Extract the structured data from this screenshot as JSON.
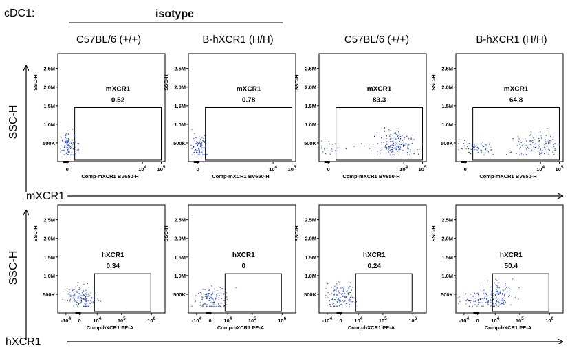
{
  "figure": {
    "population_label": "cDC1:",
    "isotype_label": "isotype",
    "column_headers": [
      "C57BL/6 (+/+)",
      "B-hXCR1 (H/H)",
      "C57BL/6 (+/+)",
      "B-hXCR1 (H/H)"
    ],
    "y_arrow_label": "SSC-H",
    "row_arrow_labels": [
      "mXCR1",
      "hXCR1"
    ]
  },
  "chart_data": [
    {
      "type": "scatter",
      "row": 0,
      "col": 0,
      "ylabel": "SSC-H",
      "xlabel": "Comp-mXCR1 BV650-H",
      "y_ticks": [
        "500K",
        "1.0M",
        "1.5M",
        "2.0M",
        "2.5M"
      ],
      "x_ticks": [
        "0",
        "10^4",
        "10^5"
      ],
      "gate_name": "mXCR1",
      "gate_value": "0.52",
      "points": [
        {
          "x": 0.1,
          "y": 420000,
          "n": 110,
          "sx": 0.22,
          "sy": 180000
        }
      ]
    },
    {
      "type": "scatter",
      "row": 0,
      "col": 1,
      "ylabel": "SSC-H",
      "xlabel": "Comp-mXCR1 BV650-H",
      "y_ticks": [
        "500K",
        "1.0M",
        "1.5M",
        "2.0M",
        "2.5M"
      ],
      "x_ticks": [
        "0",
        "10^4",
        "10^5"
      ],
      "gate_name": "mXCR1",
      "gate_value": "0.78",
      "points": [
        {
          "x": 0.1,
          "y": 420000,
          "n": 100,
          "sx": 0.22,
          "sy": 170000
        }
      ]
    },
    {
      "type": "scatter",
      "row": 0,
      "col": 2,
      "ylabel": "SSC-H",
      "xlabel": "Comp-mXCR1 BV650-H",
      "y_ticks": [
        "500K",
        "1.0M",
        "1.5M",
        "2.0M",
        "2.5M"
      ],
      "x_ticks": [
        "0",
        "10^4",
        "10^5"
      ],
      "gate_name": "mXCR1",
      "gate_value": "83.3",
      "points": [
        {
          "x": 3.6,
          "y": 450000,
          "n": 170,
          "sx": 0.55,
          "sy": 180000
        },
        {
          "x": 0.1,
          "y": 380000,
          "n": 20,
          "sx": 0.5,
          "sy": 120000
        }
      ]
    },
    {
      "type": "scatter",
      "row": 0,
      "col": 3,
      "ylabel": "SSC-H",
      "xlabel": "Comp-mXCR1 BV650-H",
      "y_ticks": [
        "500K",
        "1.0M",
        "1.5M",
        "2.0M",
        "2.5M"
      ],
      "x_ticks": [
        "0",
        "10^4",
        "10^5"
      ],
      "gate_name": "mXCR1",
      "gate_value": "64.8",
      "points": [
        {
          "x": 3.8,
          "y": 450000,
          "n": 120,
          "sx": 0.65,
          "sy": 170000
        },
        {
          "x": 0.4,
          "y": 370000,
          "n": 70,
          "sx": 0.5,
          "sy": 100000
        }
      ]
    },
    {
      "type": "scatter",
      "row": 1,
      "col": 0,
      "ylabel": "SSC-H",
      "xlabel": "Comp-hXCR1 PE-A",
      "y_ticks": [
        "500K",
        "1.0M",
        "1.5M",
        "2.0M",
        "2.5M"
      ],
      "x_ticks": [
        "-10^4",
        "0",
        "10^4",
        "10^5",
        "10^6"
      ],
      "gate_name": "hXCR1",
      "gate_value": "0.34",
      "points": [
        {
          "x": 0.1,
          "y": 400000,
          "n": 140,
          "sx": 0.55,
          "sy": 180000
        }
      ]
    },
    {
      "type": "scatter",
      "row": 1,
      "col": 1,
      "ylabel": "SSC-H",
      "xlabel": "Comp-hXCR1 PE-A",
      "y_ticks": [
        "500K",
        "1.0M",
        "1.5M",
        "2.0M",
        "2.5M"
      ],
      "x_ticks": [
        "-10^4",
        "0",
        "10^4",
        "10^5",
        "10^6"
      ],
      "gate_name": "hXCR1",
      "gate_value": "0",
      "points": [
        {
          "x": 0.1,
          "y": 380000,
          "n": 120,
          "sx": 0.55,
          "sy": 170000
        }
      ]
    },
    {
      "type": "scatter",
      "row": 1,
      "col": 2,
      "ylabel": "SSC-H",
      "xlabel": "Comp-hXCR1 PE-A",
      "y_ticks": [
        "500K",
        "1.0M",
        "1.5M",
        "2.0M",
        "2.5M"
      ],
      "x_ticks": [
        "-10^4",
        "0",
        "10^4",
        "10^5",
        "10^6"
      ],
      "gate_name": "hXCR1",
      "gate_value": "0.24",
      "points": [
        {
          "x": 0.1,
          "y": 420000,
          "n": 130,
          "sx": 0.55,
          "sy": 180000
        }
      ]
    },
    {
      "type": "scatter",
      "row": 1,
      "col": 3,
      "ylabel": "SSC-H",
      "xlabel": "Comp-hXCR1 PE-A",
      "y_ticks": [
        "500K",
        "1.0M",
        "1.5M",
        "2.0M",
        "2.5M"
      ],
      "x_ticks": [
        "-10^4",
        "0",
        "10^4",
        "10^5",
        "10^6"
      ],
      "gate_name": "hXCR1",
      "gate_value": "50.4",
      "points": [
        {
          "x": 1.6,
          "y": 480000,
          "n": 110,
          "sx": 0.55,
          "sy": 200000
        },
        {
          "x": 0.1,
          "y": 350000,
          "n": 70,
          "sx": 0.8,
          "sy": 110000
        }
      ]
    }
  ]
}
